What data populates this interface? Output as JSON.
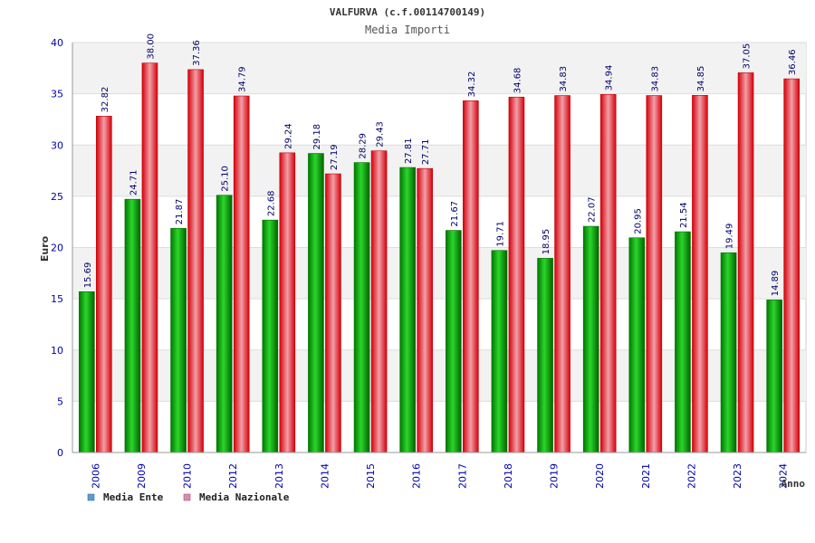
{
  "chart_data": {
    "type": "bar",
    "title": "VALFURVA (c.f.00114700149)",
    "subtitle": "Media Importi",
    "xlabel": "Anno",
    "ylabel": "Euro",
    "ylim": [
      0,
      40
    ],
    "yticks": [
      0,
      5,
      10,
      15,
      20,
      25,
      30,
      35,
      40
    ],
    "grid": true,
    "legend_position": "bottom-left",
    "categories": [
      "2006",
      "2009",
      "2010",
      "2012",
      "2013",
      "2014",
      "2015",
      "2016",
      "2017",
      "2018",
      "2019",
      "2020",
      "2021",
      "2022",
      "2023",
      "2024"
    ],
    "series": [
      {
        "name": "Media Ente",
        "color": "#00a000",
        "legend_color": "#5b9bd5",
        "values": [
          15.69,
          24.71,
          21.87,
          25.1,
          22.68,
          29.18,
          28.29,
          27.81,
          21.67,
          19.71,
          18.95,
          22.07,
          20.95,
          21.54,
          19.49,
          14.89
        ],
        "labels": [
          "15.69",
          "24.71",
          "21.87",
          "25.10",
          "22.68",
          "29.18",
          "28.29",
          "27.81",
          "21.67",
          "19.71",
          "18.95",
          "22.07",
          "20.95",
          "21.54",
          "19.49",
          "14.89"
        ]
      },
      {
        "name": "Media Nazionale",
        "color": "#e8000a",
        "legend_color": "#d98cb3",
        "values": [
          32.82,
          38.0,
          37.36,
          34.79,
          29.24,
          27.19,
          29.43,
          27.71,
          34.32,
          34.68,
          34.83,
          34.94,
          34.83,
          34.85,
          37.05,
          36.46
        ],
        "labels": [
          "32.82",
          "38.00",
          "37.36",
          "34.79",
          "29.24",
          "27.19",
          "29.43",
          "27.71",
          "34.32",
          "34.68",
          "34.83",
          "34.94",
          "34.83",
          "34.85",
          "37.05",
          "36.46"
        ]
      }
    ]
  }
}
